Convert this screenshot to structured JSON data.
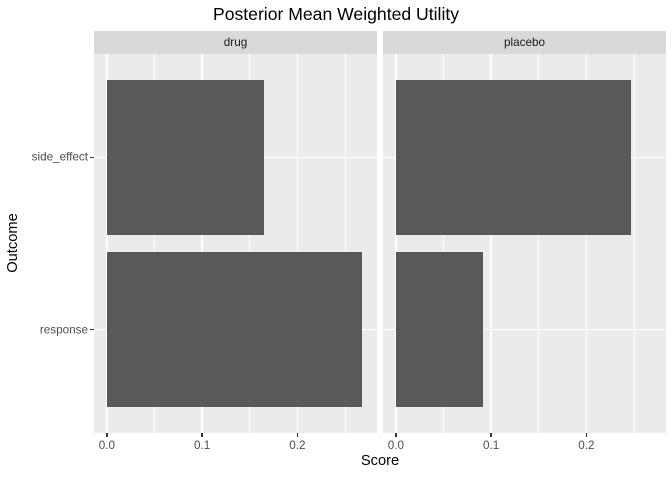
{
  "chart_data": {
    "type": "bar",
    "orientation": "horizontal",
    "title": "Posterior Mean Weighted Utility",
    "xlabel": "Score",
    "ylabel": "Outcome",
    "categories": [
      "side_effect",
      "response"
    ],
    "facets": [
      {
        "label": "drug",
        "values": [
          0.165,
          0.268
        ]
      },
      {
        "label": "placebo",
        "values": [
          0.247,
          0.091
        ]
      }
    ],
    "x_ticks": [
      0,
      0.1,
      0.2
    ],
    "x_tick_labels": [
      "0.0",
      "0.1",
      "0.2"
    ],
    "x_minor_ticks": [
      0.05,
      0.15,
      0.25
    ],
    "xlim": [
      -0.0135,
      0.2835
    ],
    "grid": "on",
    "legend": "none",
    "colors": {
      "bar": "#595959",
      "panel_bg": "#EBEBEB",
      "strip_bg": "#D9D9D9",
      "grid": "#FFFFFF",
      "tick": "#333333",
      "tick_label": "#4D4D4D",
      "strip_text": "#1A1A1A",
      "title": "#000000"
    }
  }
}
